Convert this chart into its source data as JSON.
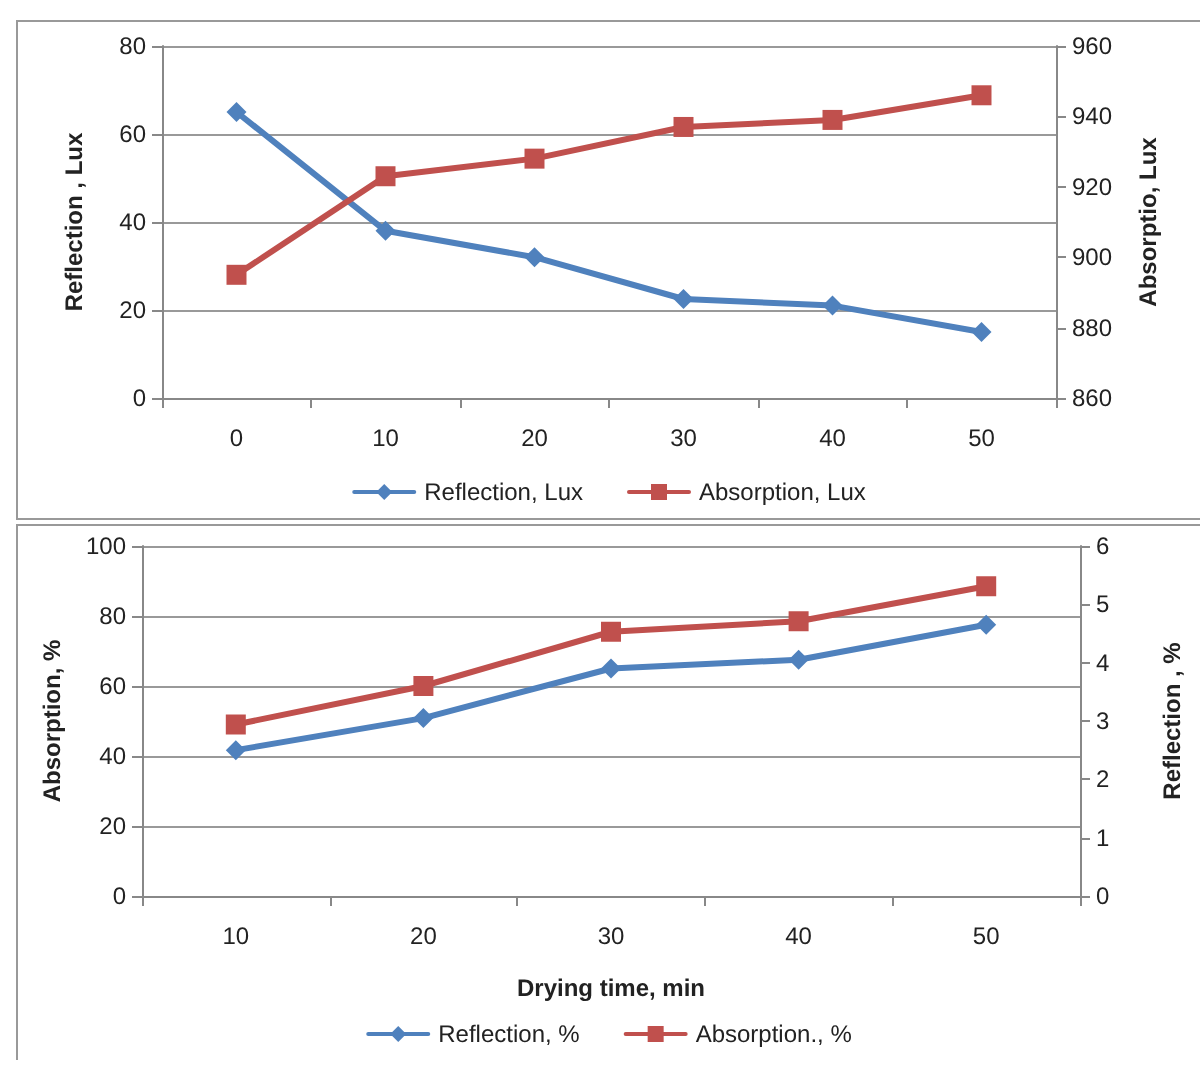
{
  "chart_data": [
    {
      "type": "line",
      "ylabel": "Reflection , Lux",
      "y2label": "Absorptio, Lux",
      "categories": [
        "0",
        "10",
        "20",
        "30",
        "40",
        "50"
      ],
      "ylim": [
        0,
        80
      ],
      "yticks": [
        0,
        20,
        40,
        60,
        80
      ],
      "y2lim": [
        860,
        960
      ],
      "y2ticks": [
        860,
        880,
        900,
        920,
        940,
        960
      ],
      "grid": "y",
      "legend": "bottom",
      "series": [
        {
          "name": "Reflection, Lux",
          "color": "#4f81bd",
          "marker": "diamond",
          "values": [
            65,
            38,
            32,
            22.5,
            21,
            15
          ]
        },
        {
          "name": "Absorption, Lux",
          "color": "#c0504d",
          "marker": "square",
          "axis": "y2",
          "values": [
            895,
            923,
            928,
            937,
            939,
            946
          ]
        }
      ]
    },
    {
      "type": "line",
      "xlabel": "Drying time, min",
      "ylabel": "Absorption, %",
      "y2label": "Reflection , %",
      "categories": [
        "10",
        "20",
        "30",
        "40",
        "50"
      ],
      "ylim": [
        0,
        100
      ],
      "yticks": [
        0,
        20,
        40,
        60,
        80,
        100
      ],
      "y2lim": [
        0,
        6
      ],
      "y2ticks": [
        0,
        1,
        2,
        3,
        4,
        5,
        6
      ],
      "grid": "y",
      "legend": "bottom",
      "series": [
        {
          "name": "Reflection, %",
          "color": "#4f81bd",
          "marker": "diamond",
          "axis": "y2",
          "values": [
            2.5,
            3.05,
            3.9,
            4.05,
            4.65
          ]
        },
        {
          "name": "Absorption., %",
          "color": "#c0504d",
          "marker": "square",
          "values": [
            49,
            60,
            75.5,
            78.5,
            88.5
          ]
        }
      ]
    }
  ]
}
